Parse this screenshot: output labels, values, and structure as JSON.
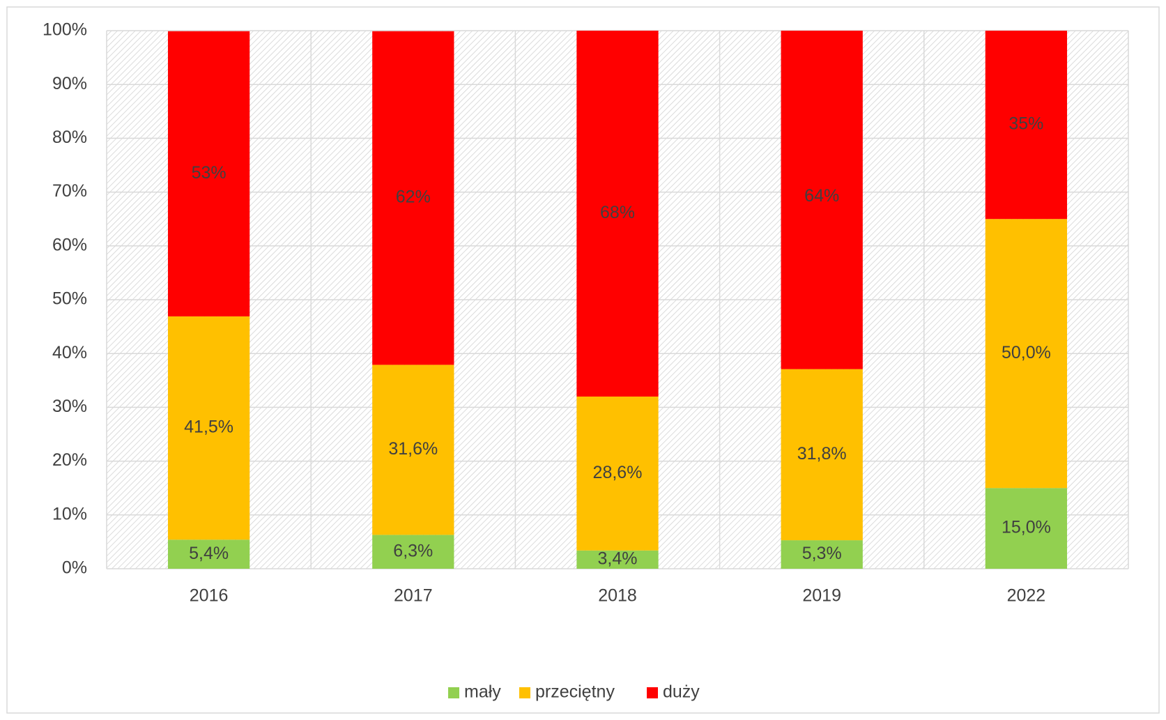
{
  "chart_data": {
    "type": "stacked_bar",
    "categories": [
      "2016",
      "2017",
      "2018",
      "2019",
      "2022"
    ],
    "series": [
      {
        "name": "mały",
        "color": "#92d050",
        "values": [
          5.4,
          6.3,
          3.4,
          5.3,
          15.0
        ],
        "value_labels": [
          "5,4%",
          "6,3%",
          "3,4%",
          "5,3%",
          "15,0%"
        ]
      },
      {
        "name": "przeciętny",
        "color": "#ffc000",
        "values": [
          41.5,
          31.6,
          28.6,
          31.8,
          50.0
        ],
        "value_labels": [
          "41,5%",
          "31,6%",
          "28,6%",
          "31,8%",
          "50,0%"
        ]
      },
      {
        "name": "duży",
        "color": "#ff0000",
        "values": [
          53,
          62,
          68,
          64,
          35
        ],
        "value_labels": [
          "53%",
          "62%",
          "68%",
          "64%",
          "35%"
        ]
      }
    ],
    "ylim": [
      0,
      100
    ],
    "yticks": [
      {
        "value": 0,
        "label": "0%"
      },
      {
        "value": 10,
        "label": "10%"
      },
      {
        "value": 20,
        "label": "20%"
      },
      {
        "value": 30,
        "label": "30%"
      },
      {
        "value": 40,
        "label": "40%"
      },
      {
        "value": 50,
        "label": "50%"
      },
      {
        "value": 60,
        "label": "60%"
      },
      {
        "value": 70,
        "label": "70%"
      },
      {
        "value": 80,
        "label": "80%"
      },
      {
        "value": 90,
        "label": "90%"
      },
      {
        "value": 100,
        "label": "100%"
      }
    ],
    "grid": true,
    "legend": "bottom"
  }
}
